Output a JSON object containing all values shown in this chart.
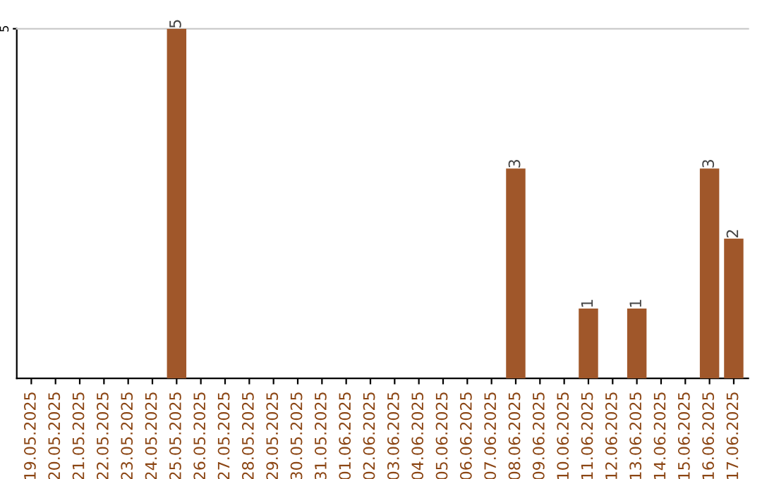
{
  "chart_data": {
    "type": "bar",
    "categories": [
      "19.05.2025",
      "20.05.2025",
      "21.05.2025",
      "22.05.2025",
      "23.05.2025",
      "24.05.2025",
      "25.05.2025",
      "26.05.2025",
      "27.05.2025",
      "28.05.2025",
      "29.05.2025",
      "30.05.2025",
      "31.05.2025",
      "01.06.2025",
      "02.06.2025",
      "03.06.2025",
      "04.06.2025",
      "05.06.2025",
      "06.06.2025",
      "07.06.2025",
      "08.06.2025",
      "09.06.2025",
      "10.06.2025",
      "11.06.2025",
      "12.06.2025",
      "13.06.2025",
      "14.06.2025",
      "15.06.2025",
      "16.06.2025",
      "17.06.2025"
    ],
    "values": [
      0,
      0,
      0,
      0,
      0,
      0,
      5,
      0,
      0,
      0,
      0,
      0,
      0,
      0,
      0,
      0,
      0,
      0,
      0,
      0,
      3,
      0,
      0,
      1,
      0,
      1,
      0,
      0,
      3,
      2
    ],
    "value_labels": [
      null,
      null,
      null,
      null,
      null,
      null,
      "5",
      null,
      null,
      null,
      null,
      null,
      null,
      null,
      null,
      null,
      null,
      null,
      null,
      null,
      "3",
      null,
      null,
      "1",
      null,
      "1",
      null,
      null,
      "3",
      "2"
    ],
    "color": "#a0572a",
    "ylim": [
      0,
      5
    ],
    "yticks": [
      5
    ]
  }
}
